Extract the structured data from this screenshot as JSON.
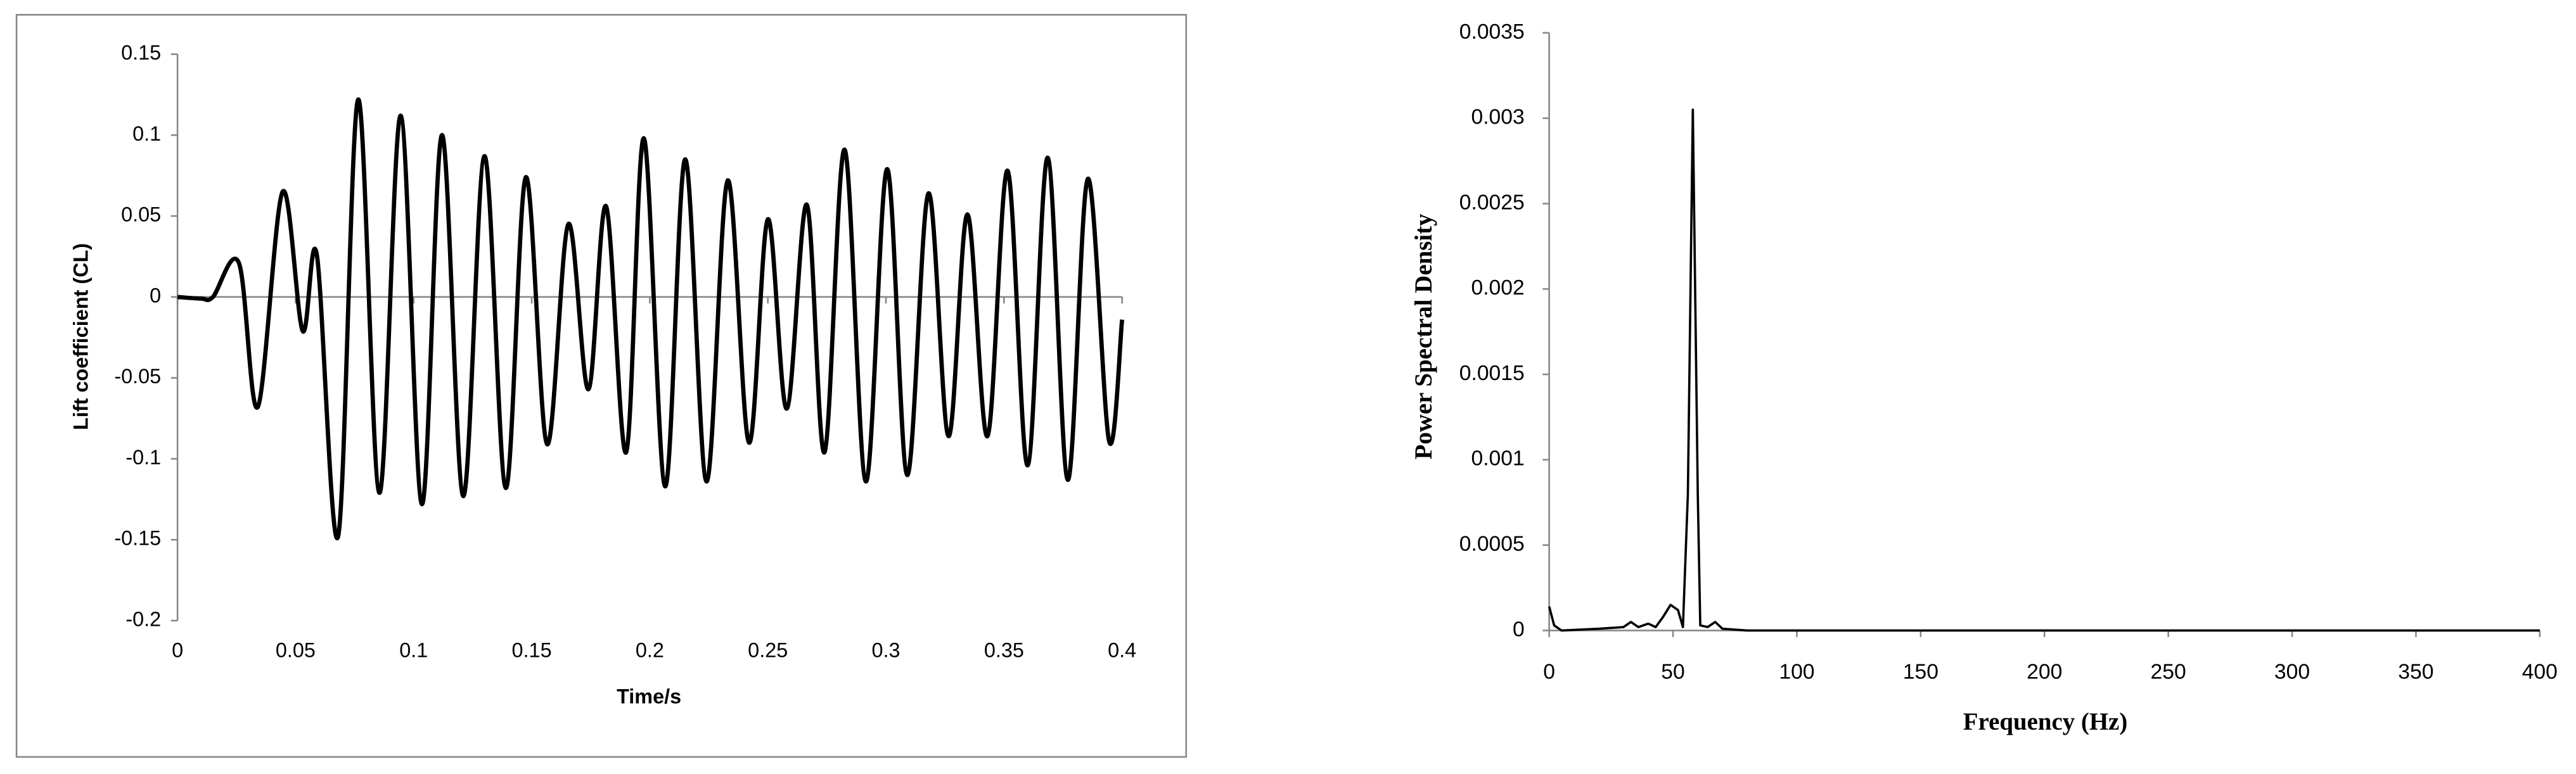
{
  "chart_data": [
    {
      "type": "line",
      "x_label": "Time/s",
      "y_label": "Lift coefficient (CL)",
      "x": [
        0,
        0.01,
        0.015,
        0.026,
        0.034,
        0.0445,
        0.053,
        0.059,
        0.068,
        0.0765,
        0.0855,
        0.0945,
        0.1035,
        0.112,
        0.121,
        0.13,
        0.139,
        0.1475,
        0.1565,
        0.1655,
        0.174,
        0.1815,
        0.19,
        0.1975,
        0.2065,
        0.215,
        0.224,
        0.233,
        0.242,
        0.25,
        0.258,
        0.2665,
        0.274,
        0.2825,
        0.2915,
        0.3005,
        0.309,
        0.318,
        0.3265,
        0.3345,
        0.343,
        0.3515,
        0.36,
        0.3685,
        0.377,
        0.3855,
        0.3945,
        0.4
      ],
      "values": [
        0,
        -0.001,
        0,
        0.021,
        -0.068,
        0.065,
        -0.021,
        0.026,
        -0.148,
        0.122,
        -0.121,
        0.112,
        -0.128,
        0.1,
        -0.123,
        0.087,
        -0.118,
        0.074,
        -0.091,
        0.045,
        -0.057,
        0.056,
        -0.096,
        0.098,
        -0.117,
        0.085,
        -0.114,
        0.072,
        -0.09,
        0.048,
        -0.069,
        0.057,
        -0.096,
        0.091,
        -0.114,
        0.079,
        -0.11,
        0.064,
        -0.086,
        0.051,
        -0.086,
        0.078,
        -0.104,
        0.086,
        -0.113,
        0.073,
        -0.089,
        -0.014
      ],
      "color": "#000000",
      "xlim": [
        0,
        0.4
      ],
      "xticks": [
        0,
        0.05,
        0.1,
        0.15,
        0.2,
        0.25,
        0.3,
        0.35,
        0.4
      ],
      "ylim": [
        -0.2,
        0.15
      ],
      "yticks": [
        0.15,
        0.1,
        0.05,
        0,
        -0.05,
        -0.1,
        -0.15,
        -0.2
      ],
      "grid": false
    },
    {
      "type": "line",
      "x_label": "Frequency (Hz)",
      "y_label": "Power Spectral Density",
      "x": [
        0,
        2,
        5,
        20,
        30,
        33,
        36,
        40,
        43,
        46,
        49,
        52,
        54,
        56,
        58,
        60,
        61,
        64,
        67,
        70,
        80,
        400
      ],
      "values": [
        0.00014,
        3e-05,
        0,
        1e-05,
        2e-05,
        5e-05,
        2e-05,
        4e-05,
        2e-05,
        8e-05,
        0.00015,
        0.00012,
        2e-05,
        0.0008,
        0.00305,
        0.0008,
        3e-05,
        2e-05,
        5e-05,
        1e-05,
        0,
        0
      ],
      "color": "#000000",
      "xlim": [
        0,
        400
      ],
      "xticks": [
        0,
        50,
        100,
        150,
        200,
        250,
        300,
        350,
        400
      ],
      "ylim": [
        0,
        0.0035
      ],
      "yticks": [
        0.0035,
        0.003,
        0.0025,
        0.002,
        0.0015,
        0.001,
        0.0005,
        0
      ],
      "grid": false
    }
  ]
}
